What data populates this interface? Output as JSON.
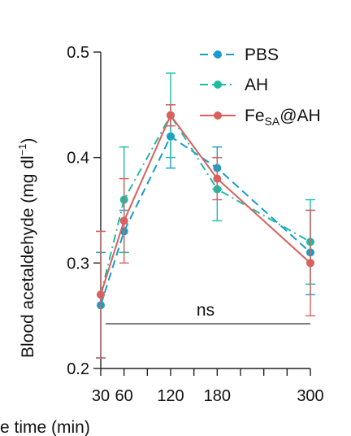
{
  "chart_data": {
    "type": "line",
    "title": "",
    "ylabel": "Blood acetaldehyde (mg dl",
    "ylabel_sup": "−1",
    "ylabel_close": ")",
    "xlabel": "e time (min)",
    "x": [
      30,
      60,
      120,
      180,
      300
    ],
    "x_ticklabels": [
      "30",
      "60",
      "120",
      "180",
      "300"
    ],
    "ylim": [
      0.2,
      0.5
    ],
    "y_ticks": [
      0.2,
      0.3,
      0.4,
      0.5
    ],
    "y_ticklabels": [
      "0.2",
      "0.3",
      "0.4",
      "0.5"
    ],
    "grid": false,
    "legend_position": "top-right",
    "annotation": "ns",
    "series": [
      {
        "name": "PBS",
        "color": "#1a9bc9",
        "dash": "dashed",
        "values": [
          0.26,
          0.33,
          0.42,
          0.39,
          0.31
        ],
        "errors": [
          0.05,
          0.02,
          0.03,
          0.02,
          0.04
        ]
      },
      {
        "name": "AH",
        "color": "#1ebba4",
        "dash": "dash-dot",
        "values": [
          0.27,
          0.36,
          0.44,
          0.37,
          0.32
        ],
        "errors": [
          0.06,
          0.05,
          0.04,
          0.03,
          0.04
        ]
      },
      {
        "name": "Fe",
        "name_sub": "SA",
        "name_tail": "@AH",
        "color": "#d9605e",
        "dash": "solid",
        "values": [
          0.27,
          0.34,
          0.44,
          0.38,
          0.3
        ],
        "errors": [
          0.06,
          0.04,
          0.01,
          0.02,
          0.05
        ]
      }
    ]
  }
}
